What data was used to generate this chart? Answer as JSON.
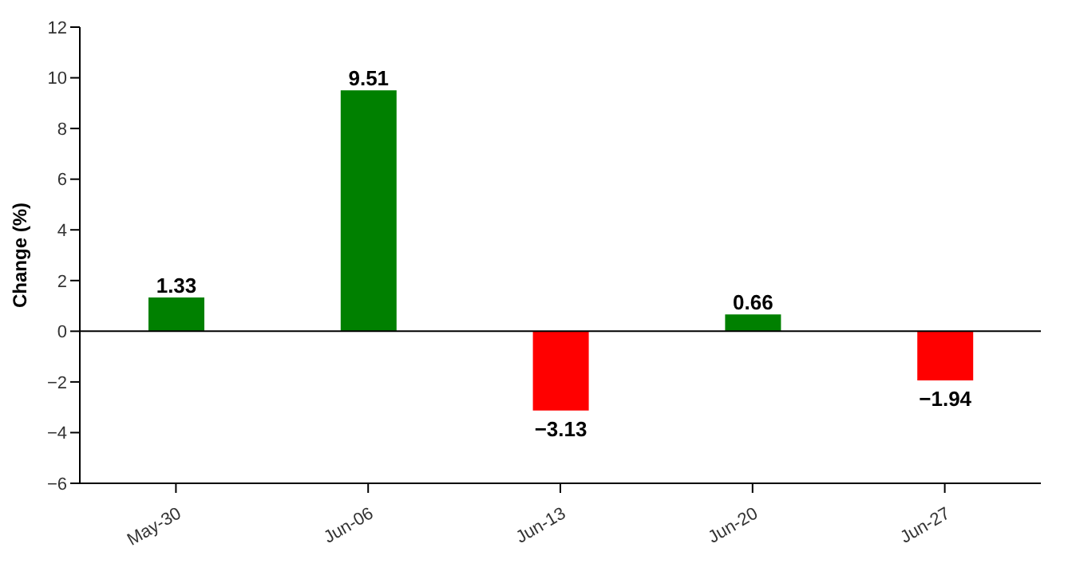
{
  "chart_data": {
    "type": "bar",
    "ylabel": "Change (%)",
    "categories": [
      "May-30",
      "Jun-06",
      "Jun-13",
      "Jun-20",
      "Jun-27"
    ],
    "values": [
      1.33,
      9.51,
      -3.13,
      0.66,
      -1.94
    ],
    "colors": [
      "#008000",
      "#008000",
      "#ff0000",
      "#008000",
      "#ff0000"
    ],
    "ylim": [
      -6,
      12
    ],
    "yticks": [
      -6,
      -4,
      -2,
      0,
      2,
      4,
      6,
      8,
      10,
      12
    ],
    "ref_lines": [
      {
        "axis": "y",
        "value": 0,
        "color": "#000000"
      }
    ],
    "data_labels": true,
    "grid": false,
    "legend": false
  }
}
